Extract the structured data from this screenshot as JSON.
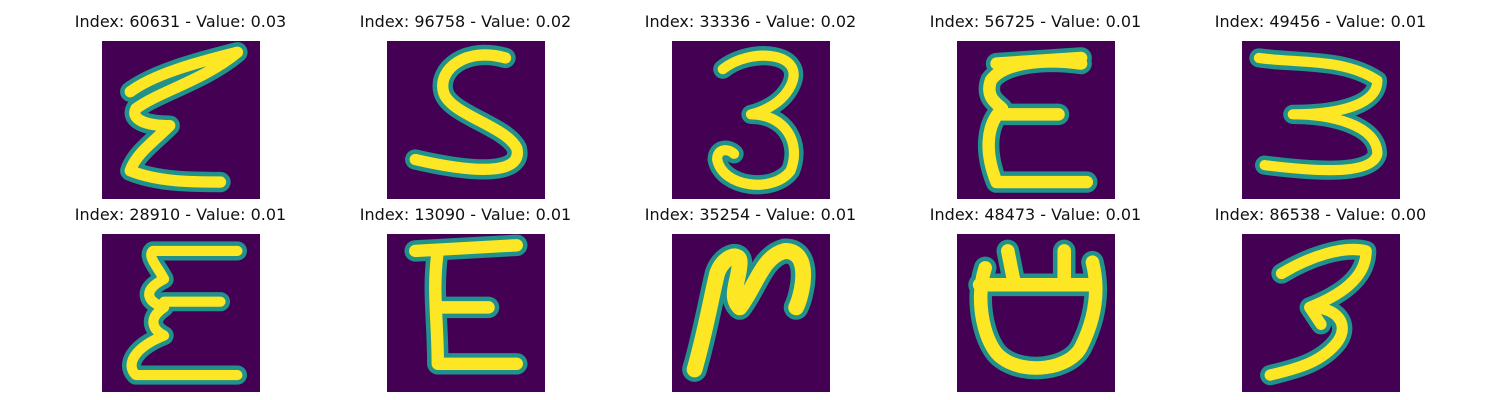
{
  "panels": [
    {
      "index_text": "Index: 60631 - Value: 0.03",
      "glyph": "Ƨ-like"
    },
    {
      "index_text": "Index: 96758 - Value: 0.02",
      "glyph": "S"
    },
    {
      "index_text": "Index: 33336 - Value: 0.02",
      "glyph": "3"
    },
    {
      "index_text": "Index: 56725 - Value: 0.01",
      "glyph": "E"
    },
    {
      "index_text": "Index: 49456 - Value: 0.01",
      "glyph": "3"
    },
    {
      "index_text": "Index: 28910 - Value: 0.01",
      "glyph": "E-wavy"
    },
    {
      "index_text": "Index: 13090 - Value: 0.01",
      "glyph": "E"
    },
    {
      "index_text": "Index: 35254 - Value: 0.01",
      "glyph": "N-like"
    },
    {
      "index_text": "Index: 48473 - Value: 0.01",
      "glyph": "U-closed"
    },
    {
      "index_text": "Index: 86538 - Value: 0.00",
      "glyph": "3"
    }
  ],
  "colors": {
    "background": "#440154",
    "stroke_core": "#fde725",
    "stroke_edge": "#21918c"
  }
}
